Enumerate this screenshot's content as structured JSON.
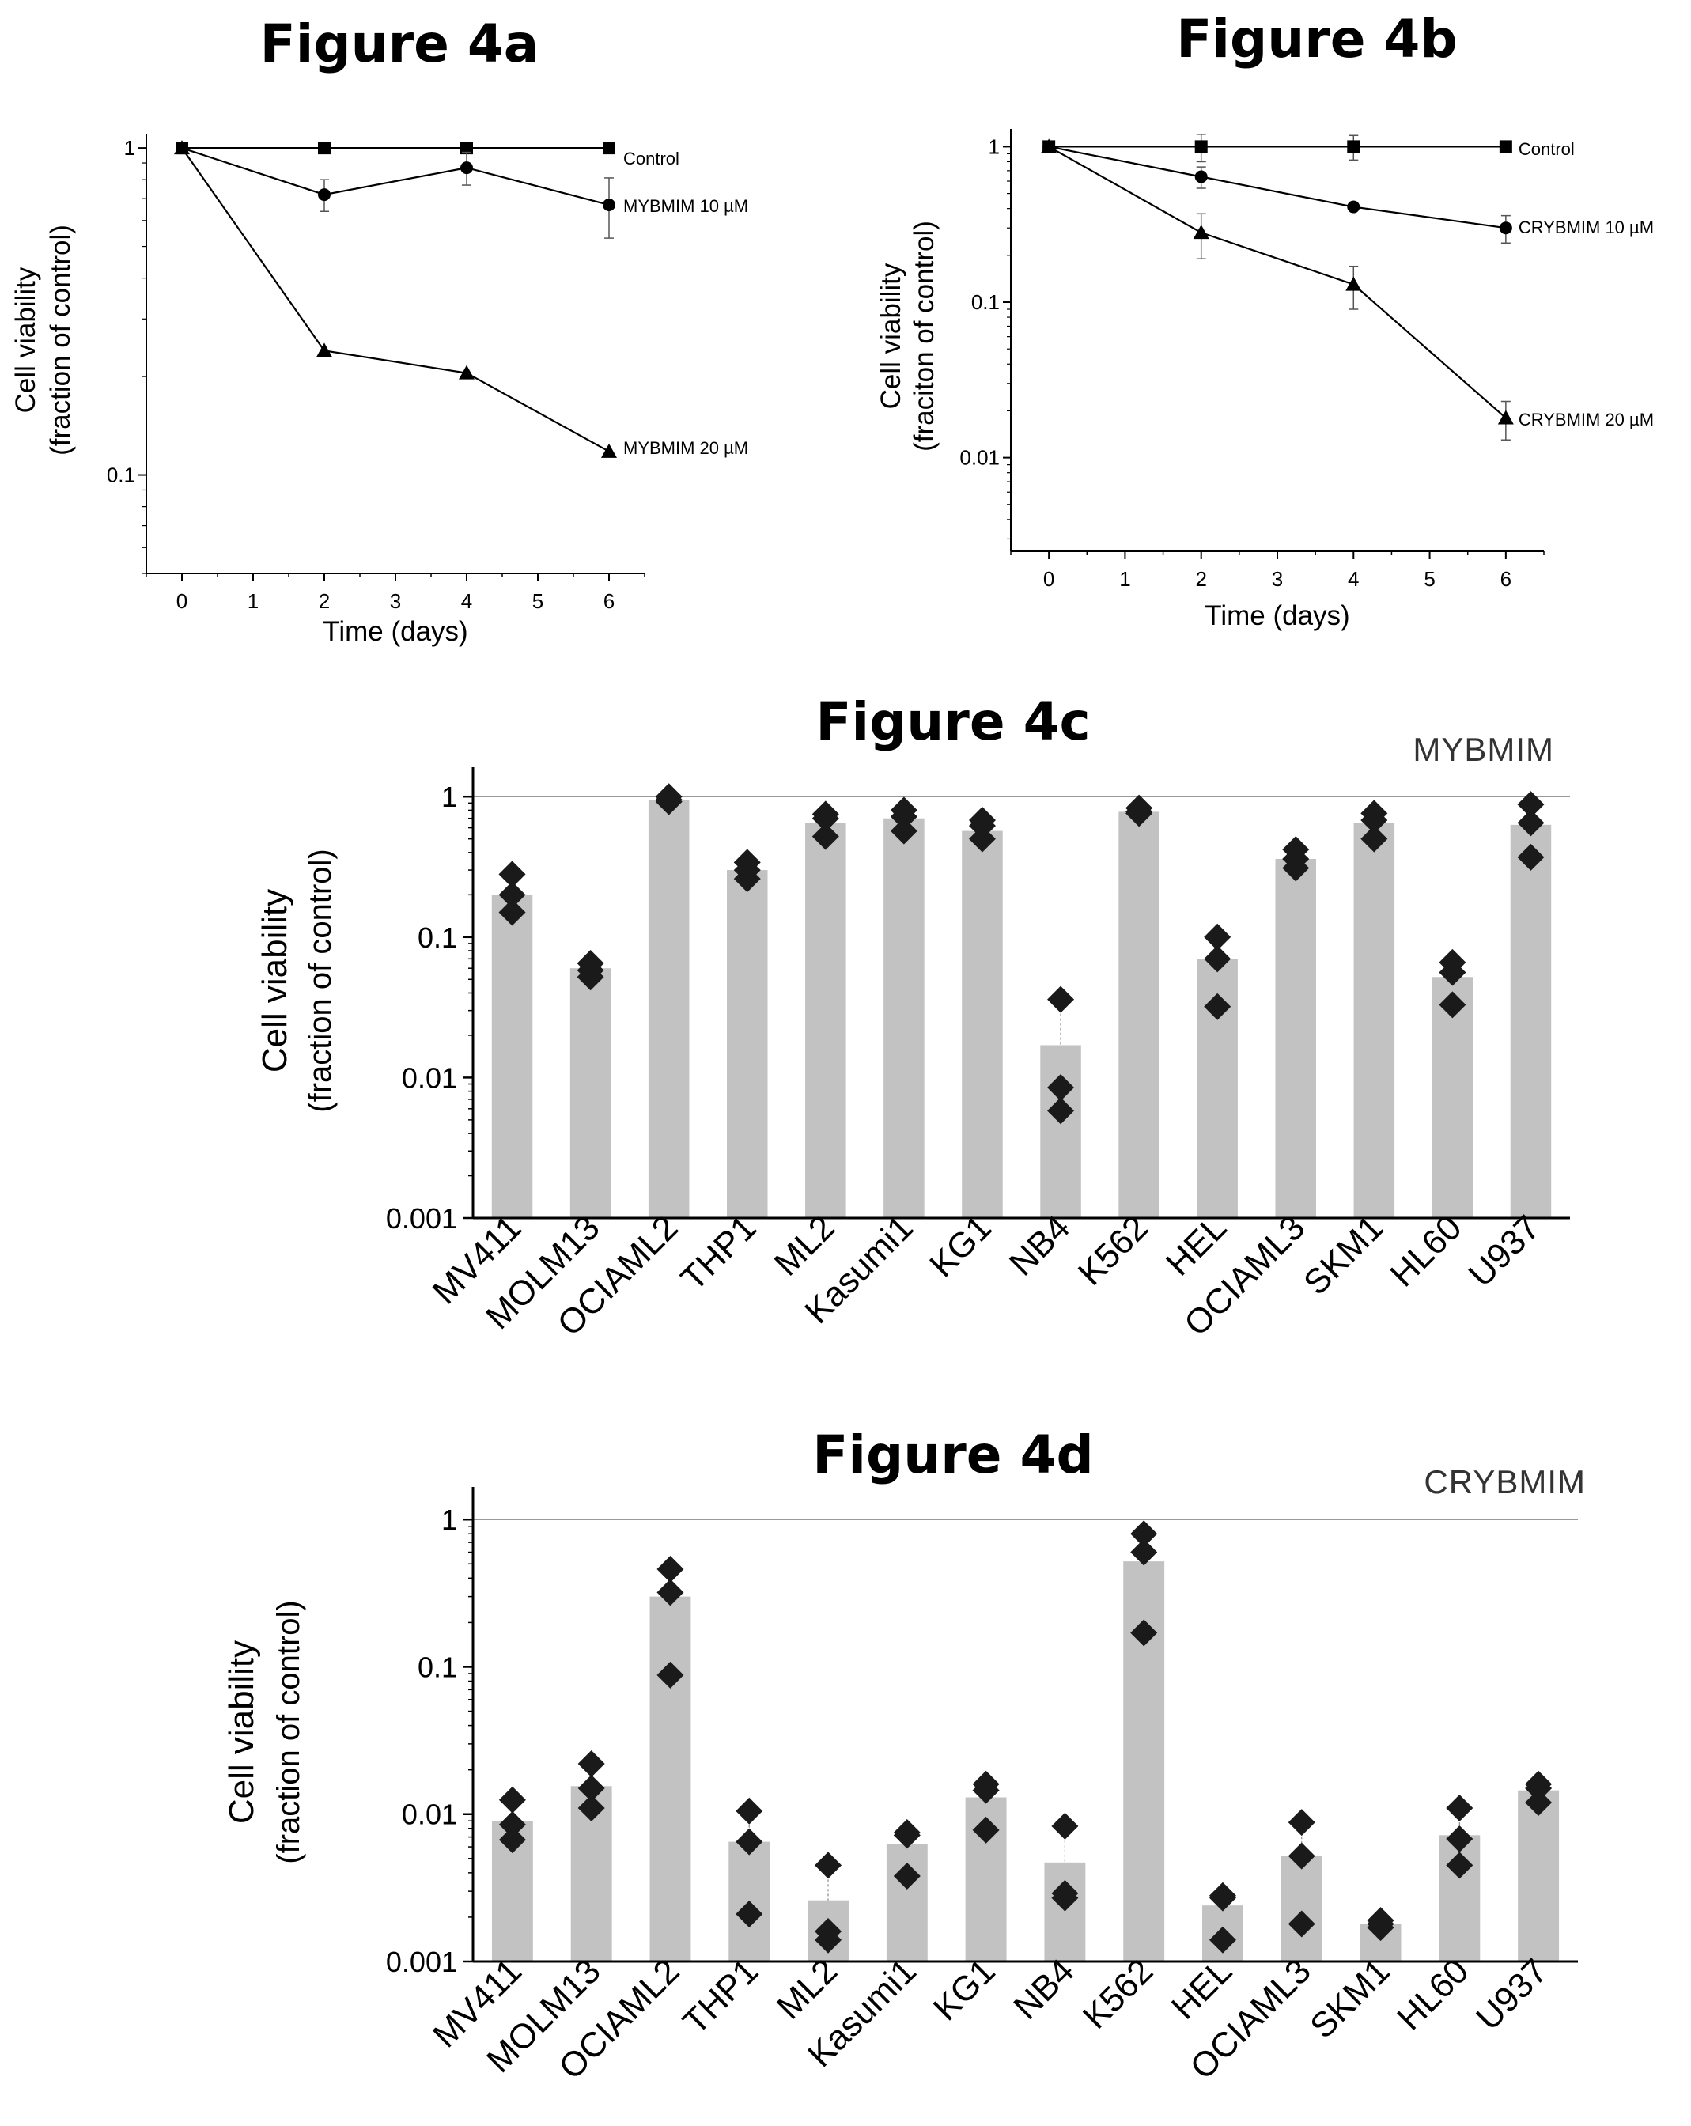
{
  "colors": {
    "bar": "#c2c2c2",
    "marker": "#1a1a1a",
    "reference_line": "#999999"
  },
  "chart_data": [
    {
      "id": "4a",
      "type": "line",
      "title": "Figure 4a",
      "xlabel": "Time (days)",
      "ylabel": [
        "Cell viability",
        "(fraction of control)"
      ],
      "yscale": "log",
      "xlim": [
        -0.5,
        6.5
      ],
      "ylim": [
        0.05,
        1.1
      ],
      "xticks": [
        0,
        1,
        2,
        3,
        4,
        5,
        6
      ],
      "xtick_labels": [
        "0",
        "1",
        "2",
        "3",
        "4",
        "5",
        "6"
      ],
      "yticks": [
        1,
        0.1
      ],
      "ytick_labels": [
        "1",
        "0.1"
      ],
      "series": [
        {
          "name": "Control",
          "marker": "square",
          "x": [
            0,
            2,
            4,
            6
          ],
          "y": [
            1,
            1,
            1,
            1
          ],
          "err": [
            0,
            0,
            0,
            0
          ]
        },
        {
          "name": "MYBMIM 10 µM",
          "marker": "circle",
          "x": [
            0,
            2,
            4,
            6
          ],
          "y": [
            1,
            0.72,
            0.87,
            0.67
          ],
          "err": [
            0,
            0.08,
            0.1,
            0.14
          ]
        },
        {
          "name": "MYBMIM 20 µM",
          "marker": "triangle",
          "x": [
            0,
            2,
            4,
            6
          ],
          "y": [
            1,
            0.24,
            0.205,
            0.118
          ],
          "err": [
            0,
            0,
            0,
            0
          ]
        }
      ]
    },
    {
      "id": "4b",
      "type": "line",
      "title": "Figure 4b",
      "xlabel": "Time (days)",
      "ylabel": [
        "Cell viability",
        "(fraciton of control)"
      ],
      "yscale": "log",
      "xlim": [
        -0.5,
        6.5
      ],
      "ylim": [
        0.0025,
        1.3
      ],
      "xticks": [
        0,
        1,
        2,
        3,
        4,
        5,
        6
      ],
      "xtick_labels": [
        "0",
        "1",
        "2",
        "3",
        "4",
        "5",
        "6"
      ],
      "yticks": [
        1,
        0.1,
        0.01
      ],
      "ytick_labels": [
        "1",
        "0.1",
        "0.01"
      ],
      "series": [
        {
          "name": "Control",
          "marker": "square",
          "x": [
            0,
            2,
            4,
            6
          ],
          "y": [
            1,
            1,
            1,
            1
          ],
          "err": [
            0,
            0.2,
            0.18,
            0
          ]
        },
        {
          "name": "CRYBMIM 10 µM",
          "marker": "circle",
          "x": [
            0,
            2,
            4,
            6
          ],
          "y": [
            1,
            0.64,
            0.41,
            0.3
          ],
          "err": [
            0,
            0.1,
            0,
            0.06
          ]
        },
        {
          "name": "CRYBMIM 20 µM",
          "marker": "triangle",
          "x": [
            0,
            2,
            4,
            6
          ],
          "y": [
            1,
            0.28,
            0.13,
            0.018
          ],
          "err": [
            0,
            0.09,
            0.04,
            0.005
          ]
        }
      ]
    },
    {
      "id": "4c",
      "type": "bar",
      "title": "Figure 4c",
      "drug_label": "MYBMIM",
      "ylabel": [
        "Cell viability",
        "(fraction of control)"
      ],
      "yscale": "log",
      "ylim": [
        0.001,
        1.25
      ],
      "yticks": [
        1,
        0.1,
        0.01,
        0.001
      ],
      "ytick_labels": [
        "1",
        "0.1",
        "0.01",
        "0.001"
      ],
      "reference_line": 1,
      "categories": [
        "MV411",
        "MOLM13",
        "OCIAML2",
        "THP1",
        "ML2",
        "Kasumi1",
        "KG1",
        "NB4",
        "K562",
        "HEL",
        "OCIAML3",
        "SKM1",
        "HL60",
        "U937"
      ],
      "values": [
        0.2,
        0.06,
        0.95,
        0.3,
        0.65,
        0.7,
        0.57,
        0.017,
        0.78,
        0.07,
        0.36,
        0.65,
        0.052,
        0.63
      ],
      "replicates": [
        [
          0.28,
          0.2,
          0.15
        ],
        [
          0.065,
          0.058,
          0.052
        ],
        [
          1.0,
          0.95,
          0.92
        ],
        [
          0.34,
          0.3,
          0.26
        ],
        [
          0.75,
          0.7,
          0.52
        ],
        [
          0.8,
          0.72,
          0.57
        ],
        [
          0.68,
          0.62,
          0.5
        ],
        [
          0.036,
          0.0085,
          0.0058
        ],
        [
          0.83,
          0.78,
          0.76
        ],
        [
          0.1,
          0.07,
          0.032
        ],
        [
          0.42,
          0.36,
          0.31
        ],
        [
          0.76,
          0.68,
          0.5
        ],
        [
          0.066,
          0.056,
          0.033
        ],
        [
          0.88,
          0.65,
          0.37
        ]
      ]
    },
    {
      "id": "4d",
      "type": "bar",
      "title": "Figure 4d",
      "drug_label": "CRYBMIM",
      "ylabel": [
        "Cell viability",
        "(fraction of control)"
      ],
      "yscale": "log",
      "ylim": [
        0.001,
        1.3
      ],
      "yticks": [
        1,
        0.1,
        0.01,
        0.001
      ],
      "ytick_labels": [
        "1",
        "0.1",
        "0.01",
        "0.001"
      ],
      "reference_line": 1,
      "categories": [
        "MV411",
        "MOLM13",
        "OCIAML2",
        "THP1",
        "ML2",
        "Kasumi1",
        "KG1",
        "NB4",
        "K562",
        "HEL",
        "OCIAML3",
        "SKM1",
        "HL60",
        "U937"
      ],
      "values": [
        0.009,
        0.0155,
        0.3,
        0.0065,
        0.0026,
        0.0063,
        0.013,
        0.0047,
        0.52,
        0.0024,
        0.0052,
        0.0018,
        0.0072,
        0.0145
      ],
      "replicates": [
        [
          0.0125,
          0.0085,
          0.0067
        ],
        [
          0.022,
          0.015,
          0.011
        ],
        [
          0.46,
          0.32,
          0.088
        ],
        [
          0.0105,
          0.0065,
          0.0021
        ],
        [
          0.0045,
          0.0016,
          0.0014
        ],
        [
          0.0075,
          0.0072,
          0.0038
        ],
        [
          0.016,
          0.0145,
          0.0078
        ],
        [
          0.0083,
          0.0029,
          0.0027
        ],
        [
          0.8,
          0.6,
          0.17
        ],
        [
          0.0028,
          0.0027,
          0.0014
        ],
        [
          0.0088,
          0.0052,
          0.0018
        ],
        [
          0.0019,
          0.0018,
          0.0017
        ],
        [
          0.011,
          0.0068,
          0.0045
        ],
        [
          0.016,
          0.015,
          0.012
        ]
      ]
    }
  ]
}
